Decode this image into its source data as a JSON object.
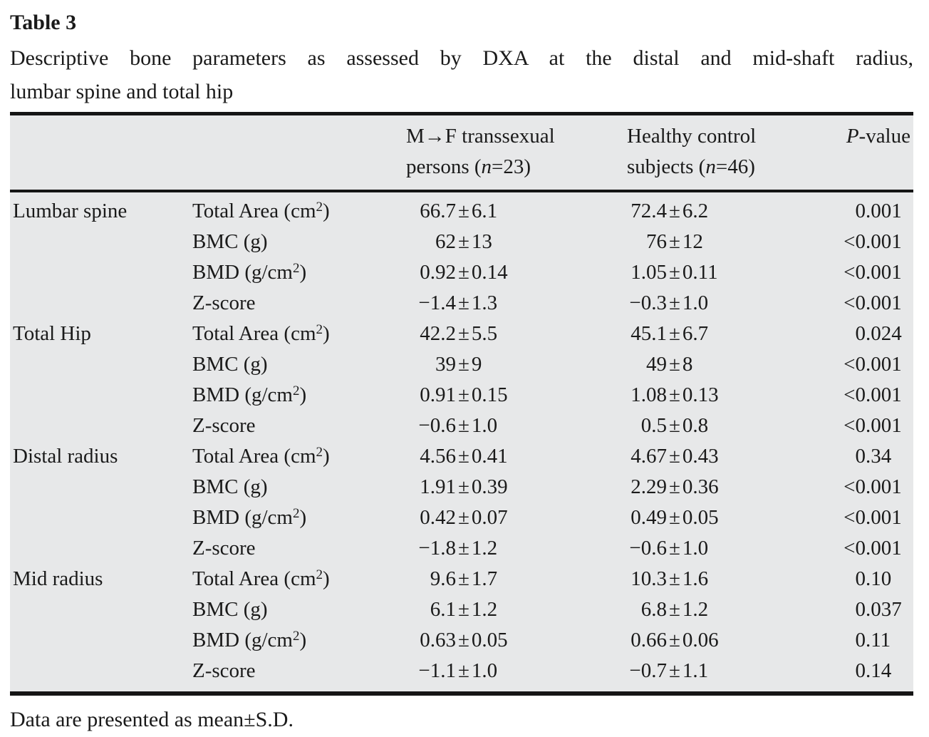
{
  "symbols": {
    "plus_minus": "±"
  },
  "page": {
    "title": "Table 3",
    "caption_line1": "Descriptive bone parameters as assessed by DXA at the distal and mid-shaft radius,",
    "caption_line2": "lumbar spine and total hip",
    "footnote": "Data are presented as mean±S.D."
  },
  "table": {
    "background_color": "#e7e8e9",
    "rule_color": "#151515",
    "header": {
      "group1": {
        "line1": "M→F transsexual",
        "line2_prefix": "persons (",
        "line2_italic": "n",
        "line2_suffix": "=23)"
      },
      "group2": {
        "line1": "Healthy control",
        "line2_prefix": "subjects (",
        "line2_italic": "n",
        "line2_suffix": "=46)"
      },
      "pvalue": {
        "italic": "P",
        "suffix": "-value"
      }
    },
    "rows": [
      {
        "region": "Lumbar spine",
        "param": "Total Area (cm",
        "sup": "2",
        "close": ")",
        "m1": "66.7",
        "s1": "6.1",
        "m2": "72.4",
        "s2": "6.2",
        "pi": "0",
        "pf": ".001"
      },
      {
        "region": "",
        "param": "BMC (g)",
        "sup": "",
        "close": "",
        "m1": "62",
        "s1": "13",
        "m2": "76",
        "s2": "12",
        "pi": "<0",
        "pf": ".001"
      },
      {
        "region": "",
        "param": "BMD (g/cm",
        "sup": "2",
        "close": ")",
        "m1": "0.92",
        "s1": "0.14",
        "m2": "1.05",
        "s2": "0.11",
        "pi": "<0",
        "pf": ".001"
      },
      {
        "region": "",
        "param": "Z-score",
        "sup": "",
        "close": "",
        "m1": "−1.4",
        "s1": "1.3",
        "m2": "−0.3",
        "s2": "1.0",
        "pi": "<0",
        "pf": ".001"
      },
      {
        "region": "Total Hip",
        "param": "Total Area (cm",
        "sup": "2",
        "close": ")",
        "m1": "42.2",
        "s1": "5.5",
        "m2": "45.1",
        "s2": "6.7",
        "pi": "0",
        "pf": ".024"
      },
      {
        "region": "",
        "param": "BMC (g)",
        "sup": "",
        "close": "",
        "m1": "39",
        "s1": "9",
        "m2": "49",
        "s2": "8",
        "pi": "<0",
        "pf": ".001"
      },
      {
        "region": "",
        "param": "BMD (g/cm",
        "sup": "2",
        "close": ")",
        "m1": "0.91",
        "s1": "0.15",
        "m2": "1.08",
        "s2": "0.13",
        "pi": "<0",
        "pf": ".001"
      },
      {
        "region": "",
        "param": "Z-score",
        "sup": "",
        "close": "",
        "m1": "−0.6",
        "s1": "1.0",
        "m2": "0.5",
        "s2": "0.8",
        "pi": "<0",
        "pf": ".001"
      },
      {
        "region": "Distal radius",
        "param": "Total Area (cm",
        "sup": "2",
        "close": ")",
        "m1": "4.56",
        "s1": "0.41",
        "m2": "4.67",
        "s2": "0.43",
        "pi": "0",
        "pf": ".34"
      },
      {
        "region": "",
        "param": "BMC (g)",
        "sup": "",
        "close": "",
        "m1": "1.91",
        "s1": "0.39",
        "m2": "2.29",
        "s2": "0.36",
        "pi": "<0",
        "pf": ".001"
      },
      {
        "region": "",
        "param": "BMD (g/cm",
        "sup": "2",
        "close": ")",
        "m1": "0.42",
        "s1": "0.07",
        "m2": "0.49",
        "s2": "0.05",
        "pi": "<0",
        "pf": ".001"
      },
      {
        "region": "",
        "param": "Z-score",
        "sup": "",
        "close": "",
        "m1": "−1.8",
        "s1": "1.2",
        "m2": "−0.6",
        "s2": "1.0",
        "pi": "<0",
        "pf": ".001"
      },
      {
        "region": "Mid radius",
        "param": "Total Area (cm",
        "sup": "2",
        "close": ")",
        "m1": "9.6",
        "s1": "1.7",
        "m2": "10.3",
        "s2": "1.6",
        "pi": "0",
        "pf": ".10"
      },
      {
        "region": "",
        "param": "BMC (g)",
        "sup": "",
        "close": "",
        "m1": "6.1",
        "s1": "1.2",
        "m2": "6.8",
        "s2": "1.2",
        "pi": "0",
        "pf": ".037"
      },
      {
        "region": "",
        "param": "BMD (g/cm",
        "sup": "2",
        "close": ")",
        "m1": "0.63",
        "s1": "0.05",
        "m2": "0.66",
        "s2": "0.06",
        "pi": "0",
        "pf": ".11"
      },
      {
        "region": "",
        "param": "Z-score",
        "sup": "",
        "close": "",
        "m1": "−1.1",
        "s1": "1.0",
        "m2": "−0.7",
        "s2": "1.1",
        "pi": "0",
        "pf": ".14"
      }
    ]
  }
}
